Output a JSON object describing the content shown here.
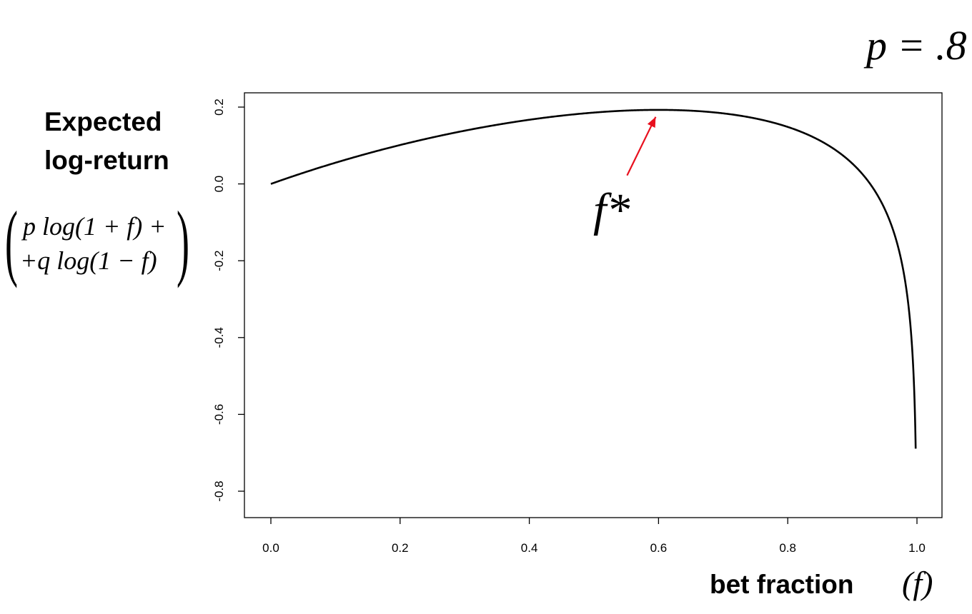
{
  "annotations": {
    "p_value": "p = .8",
    "optimum_label": "f*",
    "optimum_arrow_color": "#e8101e"
  },
  "y_axis_title": {
    "line1": "Expected",
    "line2": "log-return",
    "formula_line1": "p log(1 + f) +",
    "formula_line2": "+q log(1 − f)"
  },
  "x_axis_title": {
    "label": "bet fraction",
    "symbol": "(f)"
  },
  "chart_data": {
    "type": "line",
    "title": "",
    "xlabel": "bet fraction (f)",
    "ylabel": "Expected log-return",
    "xlim": [
      0.0,
      1.0
    ],
    "ylim": [
      -0.8,
      0.2
    ],
    "xticks": [
      "0.0",
      "0.2",
      "0.4",
      "0.6",
      "0.8",
      "1.0"
    ],
    "yticks": [
      "-0.8",
      "-0.6",
      "-0.4",
      "-0.2",
      "0.0",
      "0.2"
    ],
    "grid": false,
    "legend": "none",
    "series": [
      {
        "function": "p*log(1+f) + q*log(1-f)",
        "p": 0.8,
        "q": 0.2,
        "x": [
          0.0,
          0.1,
          0.2,
          0.3,
          0.4,
          0.5,
          0.6,
          0.7,
          0.8,
          0.9,
          0.95,
          0.98,
          0.99,
          0.995,
          0.998
        ],
        "y": [
          0.0,
          0.055,
          0.101,
          0.139,
          0.167,
          0.186,
          0.193,
          0.184,
          0.148,
          0.054,
          -0.065,
          -0.236,
          -0.372,
          -0.51,
          -0.693
        ],
        "color": "#000000"
      }
    ],
    "annotation": {
      "label": "f*",
      "x": 0.6,
      "y": 0.193
    }
  }
}
